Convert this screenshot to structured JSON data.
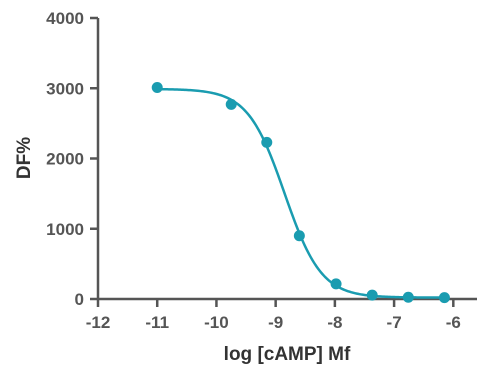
{
  "chart_data": {
    "type": "scatter",
    "title": "",
    "xlabel": "log [cAMP] Mf",
    "ylabel": "DF%",
    "xlim": [
      -12,
      -5.6
    ],
    "ylim": [
      0,
      4000
    ],
    "x_ticks": [
      -12,
      -11,
      -10,
      -9,
      -8,
      -7,
      -6
    ],
    "y_ticks": [
      0,
      1000,
      2000,
      3000,
      4000
    ],
    "grid": false,
    "legend": "none",
    "series": [
      {
        "x": [
          -11.0,
          -9.75,
          -9.15,
          -8.6,
          -7.98,
          -7.37,
          -6.76,
          -6.15
        ],
        "y": [
          3010,
          2770,
          2230,
          900,
          215,
          55,
          25,
          20
        ],
        "color": "#1a9cb0"
      }
    ],
    "fit_curve": {
      "model": "four-parameter logistic",
      "top": 2990,
      "bottom": 20,
      "log_ic50": -8.85,
      "hill_slope": -1.4,
      "color": "#1a9cb0"
    },
    "axis_color": "#555555",
    "title_color": "#333333"
  }
}
